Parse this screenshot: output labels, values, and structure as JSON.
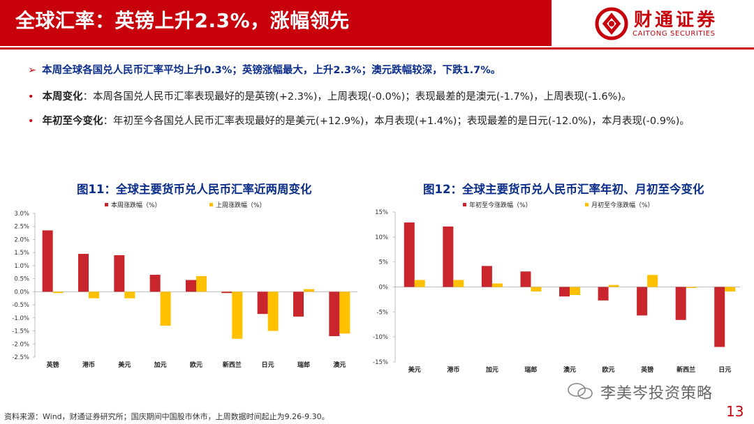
{
  "header": {
    "title": "全球汇率：英镑上升2.3%，涨幅领先",
    "logo_cn": "财通证券",
    "logo_en": "CAITONG SECURITIES"
  },
  "bullets": {
    "b1": {
      "marker": "➢",
      "text": "本周全球各国兑人民币汇率平均上升0.3%；英镑涨幅最大，上升2.3%；澳元跌幅较深，下跌1.7%。"
    },
    "b2": {
      "marker": "•",
      "label": "本周变化",
      "text": "：本周各国兑人民币汇率表现最好的是英镑(+2.3%)，上周表现(-0.0%)；表现最差的是澳元(-1.7%)，上周表现(-1.6%)。"
    },
    "b3": {
      "marker": "•",
      "label": "年初至今变化",
      "text": "：年初至今各国兑人民币汇率表现最好的是美元(+12.9%)，本月表现(+1.4%)；表现最差的是日元(-12.0%)，本月表现(-0.9%)。"
    }
  },
  "colors": {
    "red": "#c7000b",
    "bar_red": "#c8262c",
    "bar_yellow": "#ffc000",
    "navy": "#0b2e8a"
  },
  "chart_data": [
    {
      "type": "bar",
      "title": "图11：全球主要货币兑人民币汇率近两周变化",
      "categories": [
        "英镑",
        "港币",
        "美元",
        "加元",
        "欧元",
        "新西兰",
        "日元",
        "瑞郎",
        "澳元"
      ],
      "series": [
        {
          "name": "本周涨跌幅（%）",
          "values": [
            2.35,
            1.45,
            1.4,
            0.65,
            0.45,
            -0.05,
            -0.85,
            -0.95,
            -1.7
          ]
        },
        {
          "name": "上周涨跌幅（%）",
          "values": [
            -0.05,
            -0.25,
            -0.25,
            -1.3,
            0.6,
            -1.8,
            -1.5,
            0.1,
            -1.6
          ]
        }
      ],
      "yticks": [
        "3.0%",
        "2.5%",
        "2.0%",
        "1.5%",
        "1.0%",
        "0.5%",
        "0.0%",
        "-0.5%",
        "-1.0%",
        "-1.5%",
        "-2.0%",
        "-2.5%"
      ],
      "ylim": [
        -2.5,
        3.0
      ]
    },
    {
      "type": "bar",
      "title": "图12：全球主要货币兑人民币汇率年初、月初至今变化",
      "categories": [
        "美元",
        "港币",
        "加元",
        "瑞郎",
        "澳元",
        "欧元",
        "英镑",
        "新西兰",
        "日元"
      ],
      "series": [
        {
          "name": "年初至今涨跌幅（%）",
          "values": [
            12.9,
            12.1,
            4.2,
            3.1,
            -1.9,
            -2.7,
            -5.7,
            -6.6,
            -12.0
          ]
        },
        {
          "name": "月初至今涨跌幅（%）",
          "values": [
            1.4,
            1.4,
            0.7,
            -0.9,
            -1.6,
            0.4,
            2.4,
            -0.2,
            -0.9
          ]
        }
      ],
      "yticks": [
        "15%",
        "10%",
        "5%",
        "0%",
        "-5%",
        "-10%",
        "-15%"
      ],
      "ylim": [
        -15,
        15
      ]
    }
  ],
  "footer": {
    "source": "资料来源：Wind，财通证券研究所；国庆期间中国股市休市，上周数据时间起止为9.26-9.30。",
    "watermark": "李美岑投资策略",
    "page": "13"
  }
}
